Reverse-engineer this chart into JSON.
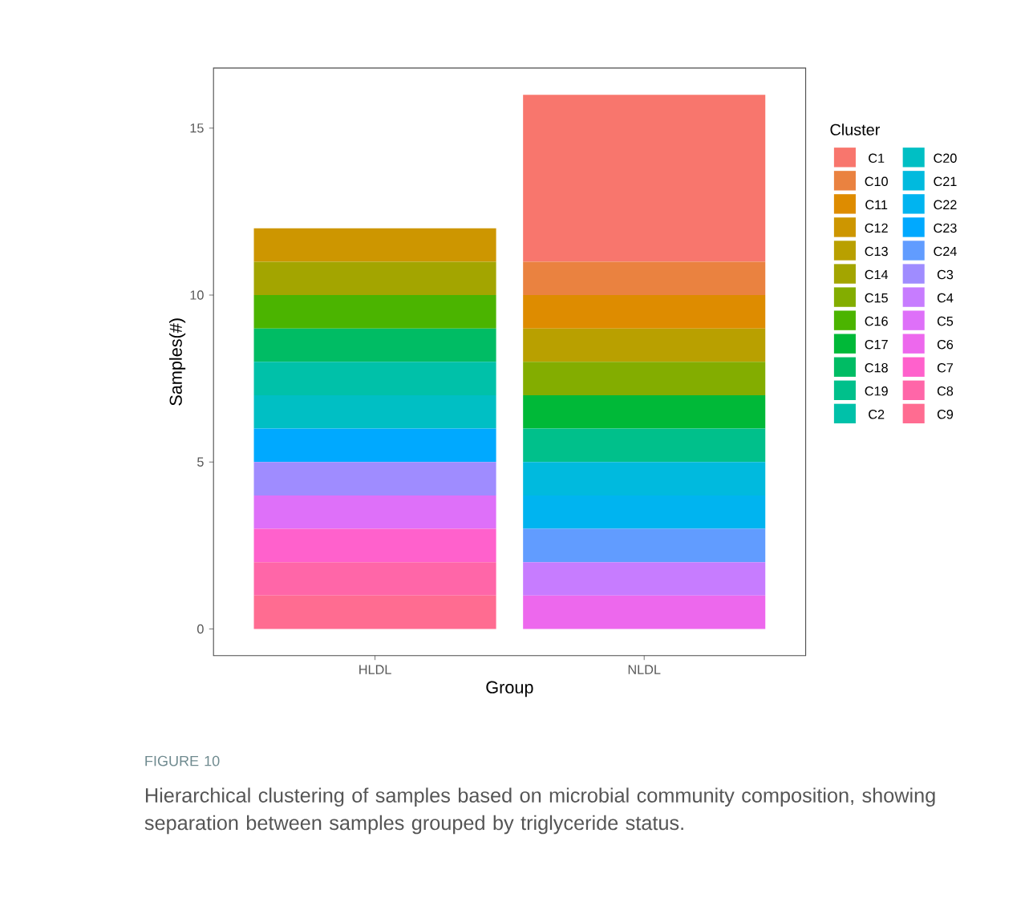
{
  "chart_data": {
    "type": "bar",
    "stacked": true,
    "xlabel": "Group",
    "ylabel": "Samples(#)",
    "legend_title": "Cluster",
    "legend": "right",
    "categories": [
      "HLDL",
      "NLDL"
    ],
    "ylim": [
      -0.8,
      16.8
    ],
    "yticks": [
      0,
      5,
      10,
      15
    ],
    "series": [
      {
        "name": "C9",
        "color": "#ff6c91",
        "values": [
          1,
          0
        ]
      },
      {
        "name": "C8",
        "color": "#ff66a8",
        "values": [
          1,
          0
        ]
      },
      {
        "name": "C7",
        "color": "#ff61cc",
        "values": [
          1,
          0
        ]
      },
      {
        "name": "C6",
        "color": "#ed68ed",
        "values": [
          0,
          1
        ]
      },
      {
        "name": "C5",
        "color": "#de70f9",
        "values": [
          1,
          0
        ]
      },
      {
        "name": "C4",
        "color": "#c77cff",
        "values": [
          0,
          1
        ]
      },
      {
        "name": "C3",
        "color": "#9f8cff",
        "values": [
          1,
          0
        ]
      },
      {
        "name": "C24",
        "color": "#619cff",
        "values": [
          0,
          1
        ]
      },
      {
        "name": "C23",
        "color": "#00a9ff",
        "values": [
          1,
          0
        ]
      },
      {
        "name": "C22",
        "color": "#00b4f0",
        "values": [
          0,
          1
        ]
      },
      {
        "name": "C21",
        "color": "#00bade",
        "values": [
          0,
          1
        ]
      },
      {
        "name": "C20",
        "color": "#00bfc4",
        "values": [
          1,
          0
        ]
      },
      {
        "name": "C2",
        "color": "#00c1a9",
        "values": [
          1,
          0
        ]
      },
      {
        "name": "C19",
        "color": "#00c08b",
        "values": [
          0,
          1
        ]
      },
      {
        "name": "C18",
        "color": "#00bc64",
        "values": [
          1,
          0
        ]
      },
      {
        "name": "C17",
        "color": "#00b938",
        "values": [
          0,
          1
        ]
      },
      {
        "name": "C16",
        "color": "#4bb400",
        "values": [
          1,
          0
        ]
      },
      {
        "name": "C15",
        "color": "#83ad00",
        "values": [
          0,
          1
        ]
      },
      {
        "name": "C14",
        "color": "#a3a500",
        "values": [
          1,
          0
        ]
      },
      {
        "name": "C13",
        "color": "#b9a000",
        "values": [
          0,
          1
        ]
      },
      {
        "name": "C12",
        "color": "#cd9600",
        "values": [
          1,
          0
        ]
      },
      {
        "name": "C11",
        "color": "#de8c00",
        "values": [
          0,
          1
        ]
      },
      {
        "name": "C10",
        "color": "#ea8240",
        "values": [
          0,
          1
        ]
      },
      {
        "name": "C1",
        "color": "#f8766d",
        "values": [
          0,
          5
        ]
      }
    ],
    "annotations": [
      "FIGURE 10",
      "Hierarchical clustering of samples based on microbial community composition, showing separation between samples grouped by triglyceride status."
    ]
  }
}
